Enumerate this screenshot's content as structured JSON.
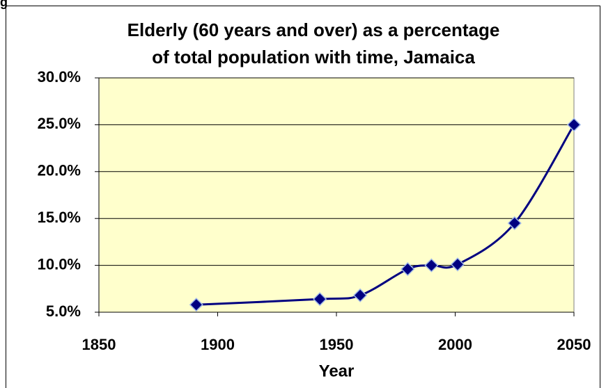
{
  "caption": "g",
  "chart_data": {
    "type": "line",
    "title": [
      "Elderly (60 years and over) as a percentage",
      "of total population with time, Jamaica"
    ],
    "x_label": "Year",
    "x": [
      1891,
      1943,
      1960,
      1980,
      1990,
      2001,
      2025,
      2050
    ],
    "series": [
      {
        "name": "Elderly",
        "color": "#000080",
        "values": [
          5.8,
          6.4,
          6.8,
          9.6,
          10.0,
          10.1,
          14.5,
          25.0
        ]
      }
    ],
    "xlim": [
      1850,
      2050
    ],
    "xticks": [
      1850,
      1900,
      1950,
      2000,
      2050
    ],
    "ylim": [
      5,
      30
    ],
    "yticks": [
      {
        "value": 5,
        "label": "5.0%"
      },
      {
        "value": 10,
        "label": "10.0%"
      },
      {
        "value": 15,
        "label": "15.0%"
      },
      {
        "value": 20,
        "label": "20.0%"
      },
      {
        "value": 25,
        "label": "25.0%"
      },
      {
        "value": 30,
        "label": "30.0%"
      }
    ],
    "grid": true,
    "plot_background": "#ffffcc"
  }
}
